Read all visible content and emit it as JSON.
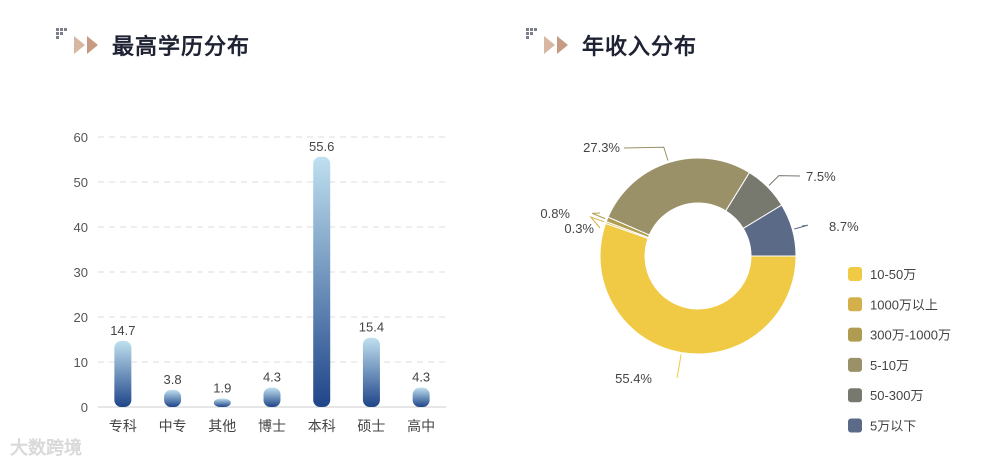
{
  "left_panel": {
    "title": "最高学历分布"
  },
  "right_panel": {
    "title": "年收入分布"
  },
  "watermark": "大数跨境",
  "chart_data": [
    {
      "type": "bar",
      "categories": [
        "专科",
        "中专",
        "其他",
        "博士",
        "本科",
        "硕士",
        "高中"
      ],
      "values": [
        14.7,
        3.8,
        1.9,
        4.3,
        55.6,
        15.4,
        4.3
      ],
      "value_labels": [
        "14.7",
        "3.8",
        "1.9",
        "4.3",
        "55.6",
        "15.4",
        "4.3"
      ],
      "y_ticks": [
        "0",
        "10",
        "20",
        "30",
        "40",
        "50",
        "60"
      ],
      "ylim": [
        0,
        60
      ],
      "grid": true,
      "bar_colors": {
        "top": "#bfe0ef",
        "bottom": "#1f4589"
      }
    },
    {
      "type": "pie",
      "donut": true,
      "legend_position": "bottom-right",
      "slices": [
        {
          "name": "10-50万",
          "value": 55.4,
          "label": "55.4%",
          "color": "#f0ca44"
        },
        {
          "name": "1000万以上",
          "value": 0.3,
          "label": "0.3%",
          "color": "#d4b04a"
        },
        {
          "name": "300万-1000万",
          "value": 0.8,
          "label": "0.8%",
          "color": "#b09c50"
        },
        {
          "name": "5-10万",
          "value": 27.3,
          "label": "27.3%",
          "color": "#9a9168"
        },
        {
          "name": "50-300万",
          "value": 7.5,
          "label": "7.5%",
          "color": "#78796e"
        },
        {
          "name": "5万以下",
          "value": 8.7,
          "label": "8.7%",
          "color": "#5b6a86"
        }
      ]
    }
  ]
}
